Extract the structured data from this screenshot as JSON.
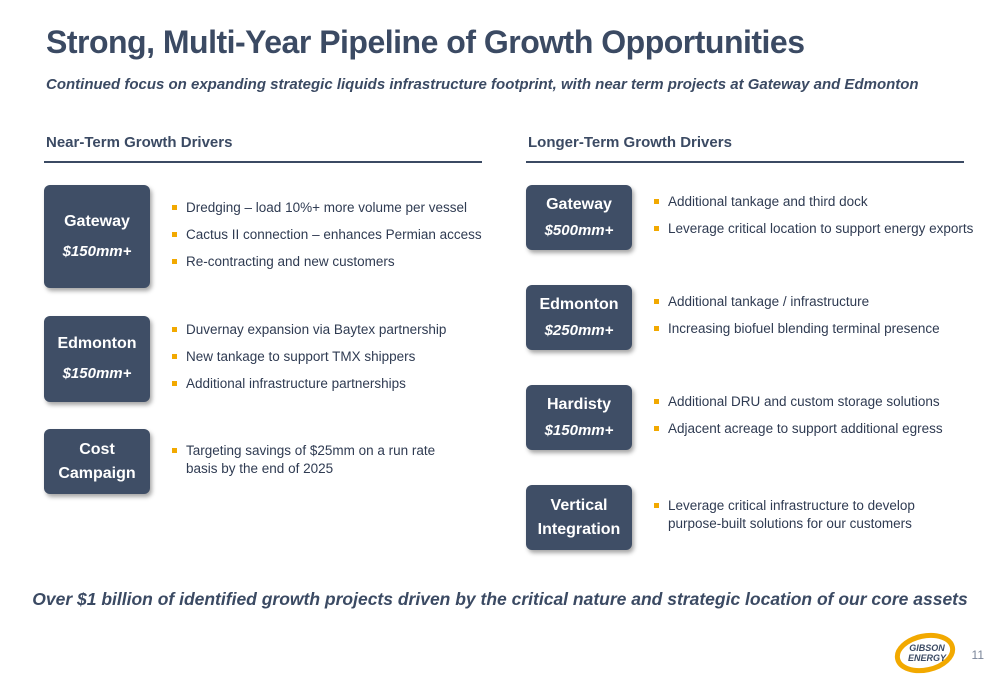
{
  "title": "Strong, Multi-Year Pipeline of Growth Opportunities",
  "subtitle": "Continued focus on expanding strategic liquids infrastructure footprint, with near term projects at Gateway and Edmonton",
  "near_term": {
    "heading": "Near-Term Growth Drivers",
    "items": [
      {
        "name": "Gateway",
        "amount": "$150mm+",
        "bullets": [
          "Dredging – load 10%+ more volume per vessel",
          "Cactus II connection – enhances Permian access",
          "Re-contracting and new customers"
        ]
      },
      {
        "name": "Edmonton",
        "amount": "$150mm+",
        "bullets": [
          "Duvernay expansion via Baytex partnership",
          "New tankage to support TMX shippers",
          "Additional infrastructure partnerships"
        ]
      },
      {
        "name_line1": "Cost",
        "name_line2": "Campaign",
        "bullets": [
          "Targeting savings of $25mm on a run rate basis by the end of 2025"
        ]
      }
    ]
  },
  "longer_term": {
    "heading": "Longer-Term Growth Drivers",
    "items": [
      {
        "name": "Gateway",
        "amount": "$500mm+",
        "bullets": [
          "Additional tankage and third dock",
          "Leverage critical location to support energy exports"
        ]
      },
      {
        "name": "Edmonton",
        "amount": "$250mm+",
        "bullets": [
          "Additional tankage / infrastructure",
          "Increasing biofuel blending terminal presence"
        ]
      },
      {
        "name": "Hardisty",
        "amount": "$150mm+",
        "bullets": [
          "Additional DRU and custom storage solutions",
          "Adjacent acreage to support additional egress"
        ]
      },
      {
        "name_line1": "Vertical",
        "name_line2": "Integration",
        "bullets": [
          "Leverage critical infrastructure to develop purpose-built solutions for our customers"
        ]
      }
    ]
  },
  "footer": "Over $1 billion of identified growth projects driven by the critical nature and strategic location of our core assets",
  "page_number": "11",
  "logo": {
    "line1": "GIBSON",
    "line2": "ENERGY",
    "accent": "#f2a900"
  },
  "colors": {
    "navy": "#3f4e66",
    "bullet": "#f2a900"
  }
}
